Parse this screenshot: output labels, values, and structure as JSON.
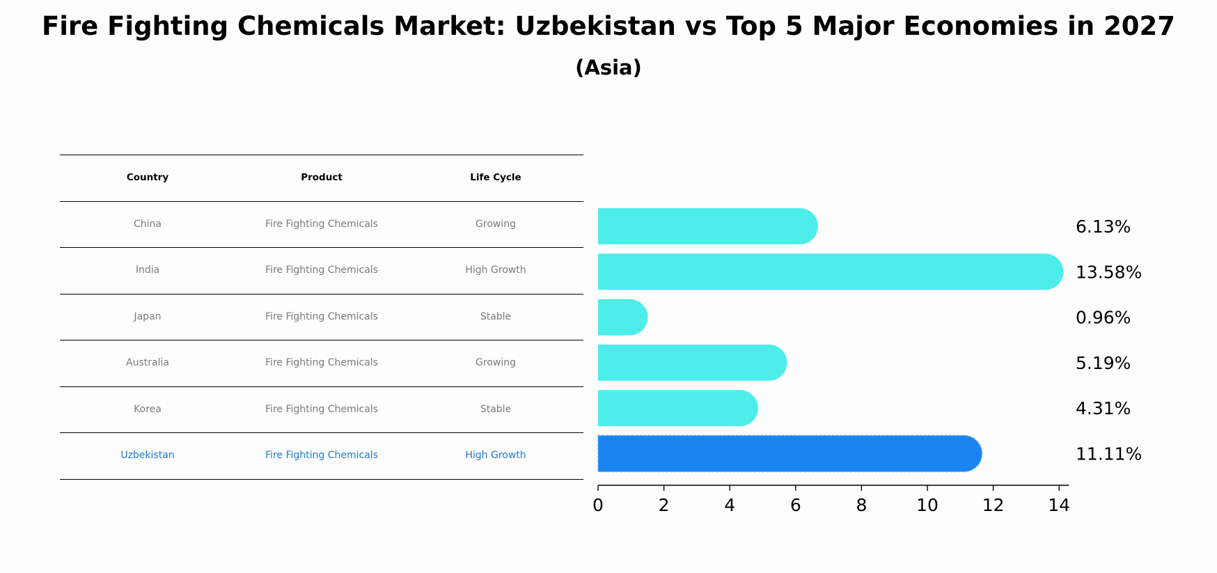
{
  "title": "Fire Fighting Chemicals Market: Uzbekistan vs Top 5 Major Economies in 2027",
  "subtitle": "(Asia)",
  "table": {
    "headers": [
      "Country",
      "Product",
      "Life Cycle"
    ],
    "rows": [
      [
        "China",
        "Fire Fighting Chemicals",
        "Growing"
      ],
      [
        "India",
        "Fire Fighting Chemicals",
        "High Growth"
      ],
      [
        "Japan",
        "Fire Fighting Chemicals",
        "Stable"
      ],
      [
        "Australia",
        "Fire Fighting Chemicals",
        "Growing"
      ],
      [
        "Korea",
        "Fire Fighting Chemicals",
        "Stable"
      ],
      [
        "Uzbekistan",
        "Fire Fighting Chemicals",
        "High Growth"
      ]
    ],
    "highlight_row": 5
  },
  "colors": {
    "bar": "#4deeea",
    "highlight_bar": "#1a85f0",
    "highlight_text": "#1f77d4",
    "row_text": "#7a7a7a"
  },
  "chart_data": {
    "type": "bar",
    "orientation": "horizontal",
    "categories": [
      "China",
      "India",
      "Japan",
      "Australia",
      "Korea",
      "Uzbekistan"
    ],
    "values": [
      6.13,
      13.58,
      0.96,
      5.19,
      4.31,
      11.11
    ],
    "value_labels": [
      "6.13%",
      "13.58%",
      "0.96%",
      "5.19%",
      "4.31%",
      "11.11%"
    ],
    "xlim": [
      0,
      14.3
    ],
    "xticks": [
      0,
      2,
      4,
      6,
      8,
      10,
      12,
      14
    ],
    "highlight_index": 5,
    "grid": false,
    "legend": "none"
  }
}
